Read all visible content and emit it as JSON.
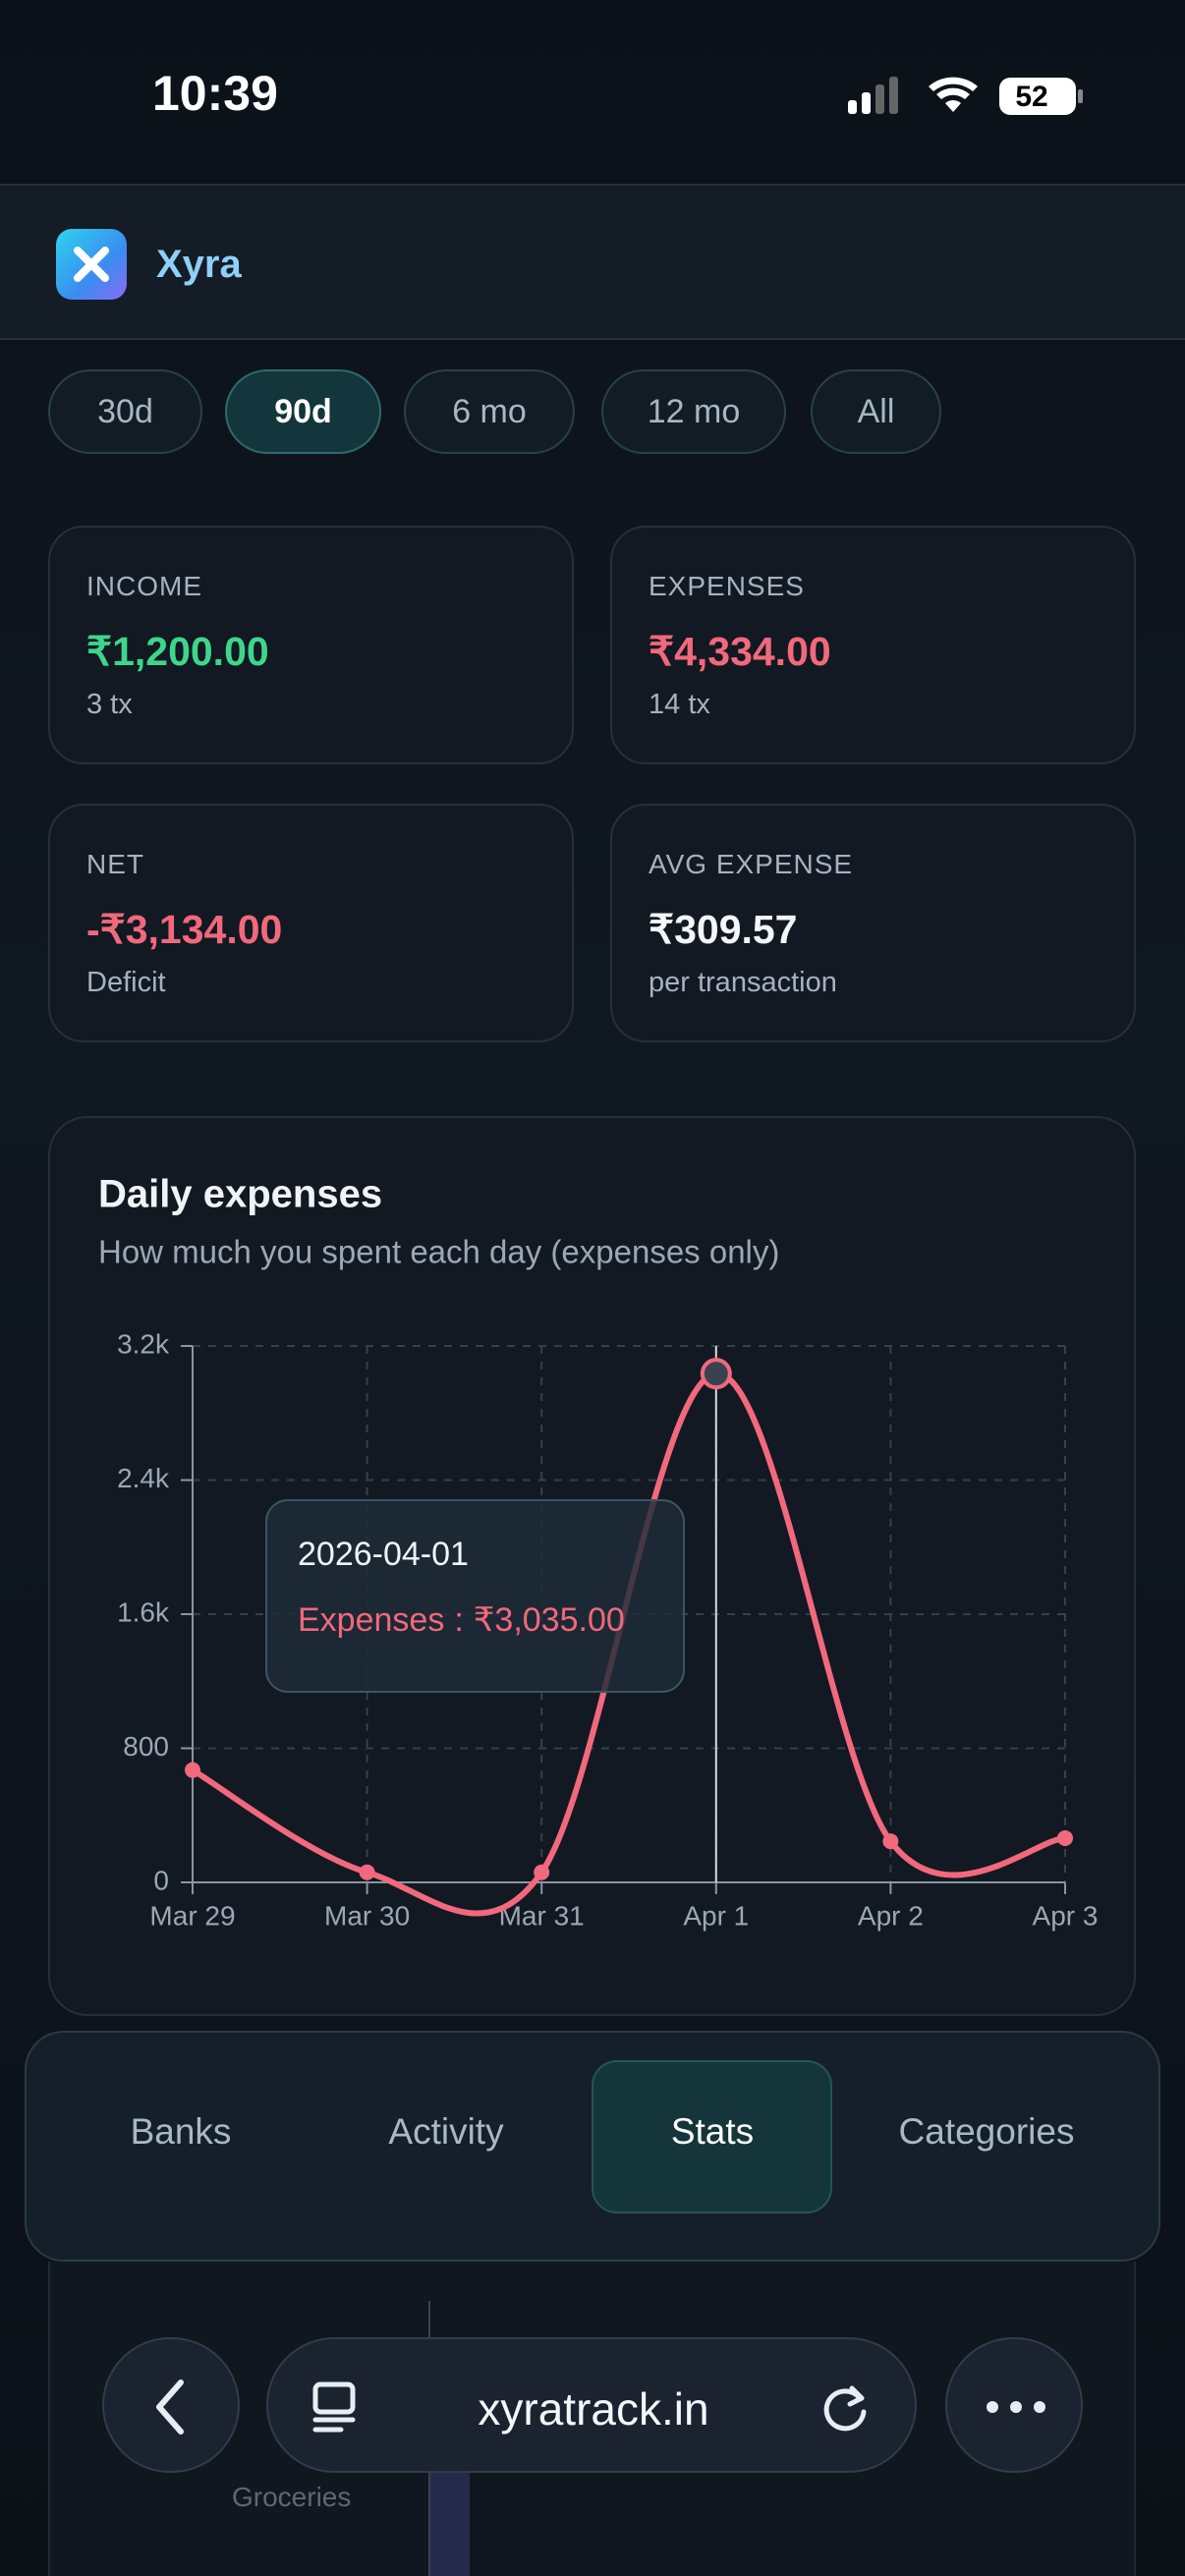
{
  "status": {
    "time": "10:39",
    "battery": "52"
  },
  "header": {
    "app_name": "Xyra"
  },
  "filters": [
    "30d",
    "90d",
    "6 mo",
    "12 mo",
    "All"
  ],
  "cards": [
    {
      "label": "INCOME",
      "value": "₹1,200.00",
      "sub": "3 tx"
    },
    {
      "label": "EXPENSES",
      "value": "₹4,334.00",
      "sub": "14 tx"
    },
    {
      "label": "NET",
      "value": "-₹3,134.00",
      "sub": "Deficit"
    },
    {
      "label": "AVG EXPENSE",
      "value": "₹309.57",
      "sub": "per transaction"
    }
  ],
  "chart_data": {
    "type": "line",
    "title": "Daily expenses",
    "subtitle": "How much you spent each day (expenses only)",
    "categories": [
      "Mar 29",
      "Mar 30",
      "Mar 31",
      "Apr 1",
      "Apr 2",
      "Apr 3"
    ],
    "series": [
      {
        "name": "Expenses",
        "color": "#f2687c",
        "values": [
          670,
          60,
          60,
          3035,
          245,
          264
        ]
      }
    ],
    "ylim": [
      0,
      3200
    ],
    "yticks": [
      0,
      800,
      {
        "value": 1600,
        "label": "1.6k"
      },
      {
        "value": 2400,
        "label": "2.4k"
      },
      {
        "value": 3200,
        "label": "3.2k"
      }
    ],
    "grid": true,
    "tooltip": {
      "title": "2026-04-01",
      "separator": ":",
      "value": "₹3,035.00"
    }
  },
  "tabs": [
    "Banks",
    "Activity",
    "Stats",
    "Categories"
  ],
  "background_chart": {
    "label": "Groceries"
  },
  "browser": {
    "url": "xyratrack.in"
  }
}
